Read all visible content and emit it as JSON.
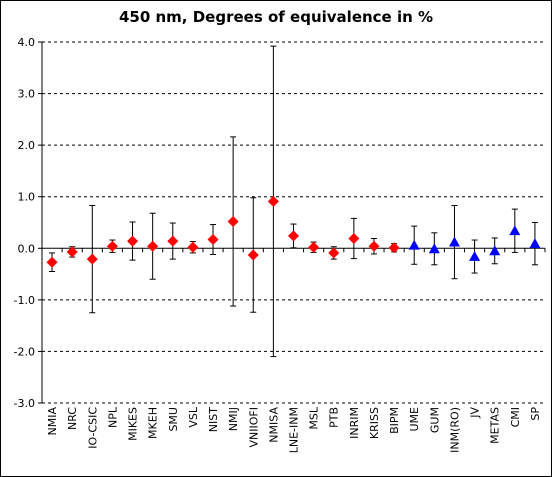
{
  "chart_data": {
    "type": "scatter",
    "title": "450 nm, Degrees of equivalence in %",
    "xlabel": "",
    "ylabel": "",
    "ylim": [
      -3.0,
      4.0
    ],
    "y_ticks": [
      "4.0",
      "3.0",
      "2.0",
      "1.0",
      "0.0",
      "-1.0",
      "-2.0",
      "-3.0"
    ],
    "grid": "horizontal dashed",
    "legend": "none",
    "marker_colors": {
      "diamond": "#ff0000",
      "triangle": "#0000ff"
    },
    "points": [
      {
        "label": "NMIA",
        "value": -0.27,
        "err": 0.18,
        "marker": "diamond"
      },
      {
        "label": "NRC",
        "value": -0.07,
        "err": 0.1,
        "marker": "diamond"
      },
      {
        "label": "IO-CSIC",
        "value": -0.21,
        "err": 1.04,
        "marker": "diamond"
      },
      {
        "label": "NPL",
        "value": 0.04,
        "err": 0.12,
        "marker": "diamond"
      },
      {
        "label": "MIKES",
        "value": 0.14,
        "err": 0.37,
        "marker": "diamond"
      },
      {
        "label": "MKEH",
        "value": 0.04,
        "err": 0.64,
        "marker": "diamond"
      },
      {
        "label": "SMU",
        "value": 0.14,
        "err": 0.35,
        "marker": "diamond"
      },
      {
        "label": "VSL",
        "value": 0.02,
        "err": 0.11,
        "marker": "diamond"
      },
      {
        "label": "NIST",
        "value": 0.17,
        "err": 0.29,
        "marker": "diamond"
      },
      {
        "label": "NMIJ",
        "value": 0.52,
        "err": 1.64,
        "marker": "diamond"
      },
      {
        "label": "VNIIOFI",
        "value": -0.13,
        "err": 1.11,
        "marker": "diamond"
      },
      {
        "label": "NMISA",
        "value": 0.91,
        "err": 3.01,
        "marker": "diamond"
      },
      {
        "label": "LNE-INM",
        "value": 0.24,
        "err": 0.23,
        "marker": "diamond"
      },
      {
        "label": "MSL",
        "value": 0.02,
        "err": 0.1,
        "marker": "diamond"
      },
      {
        "label": "PTB",
        "value": -0.09,
        "err": 0.12,
        "marker": "diamond"
      },
      {
        "label": "INRIM",
        "value": 0.19,
        "err": 0.39,
        "marker": "diamond"
      },
      {
        "label": "KRISS",
        "value": 0.04,
        "err": 0.15,
        "marker": "diamond"
      },
      {
        "label": "BIPM",
        "value": 0.01,
        "err": 0.08,
        "marker": "diamond"
      },
      {
        "label": "UME",
        "value": 0.06,
        "err": 0.37,
        "marker": "triangle"
      },
      {
        "label": "GUM",
        "value": -0.01,
        "err": 0.31,
        "marker": "triangle"
      },
      {
        "label": "INM(RO)",
        "value": 0.12,
        "err": 0.71,
        "marker": "triangle"
      },
      {
        "label": "JV",
        "value": -0.16,
        "err": 0.32,
        "marker": "triangle"
      },
      {
        "label": "METAS",
        "value": -0.05,
        "err": 0.25,
        "marker": "triangle"
      },
      {
        "label": "CMI",
        "value": 0.34,
        "err": 0.42,
        "marker": "triangle"
      },
      {
        "label": "SP",
        "value": 0.09,
        "err": 0.41,
        "marker": "triangle"
      }
    ]
  }
}
